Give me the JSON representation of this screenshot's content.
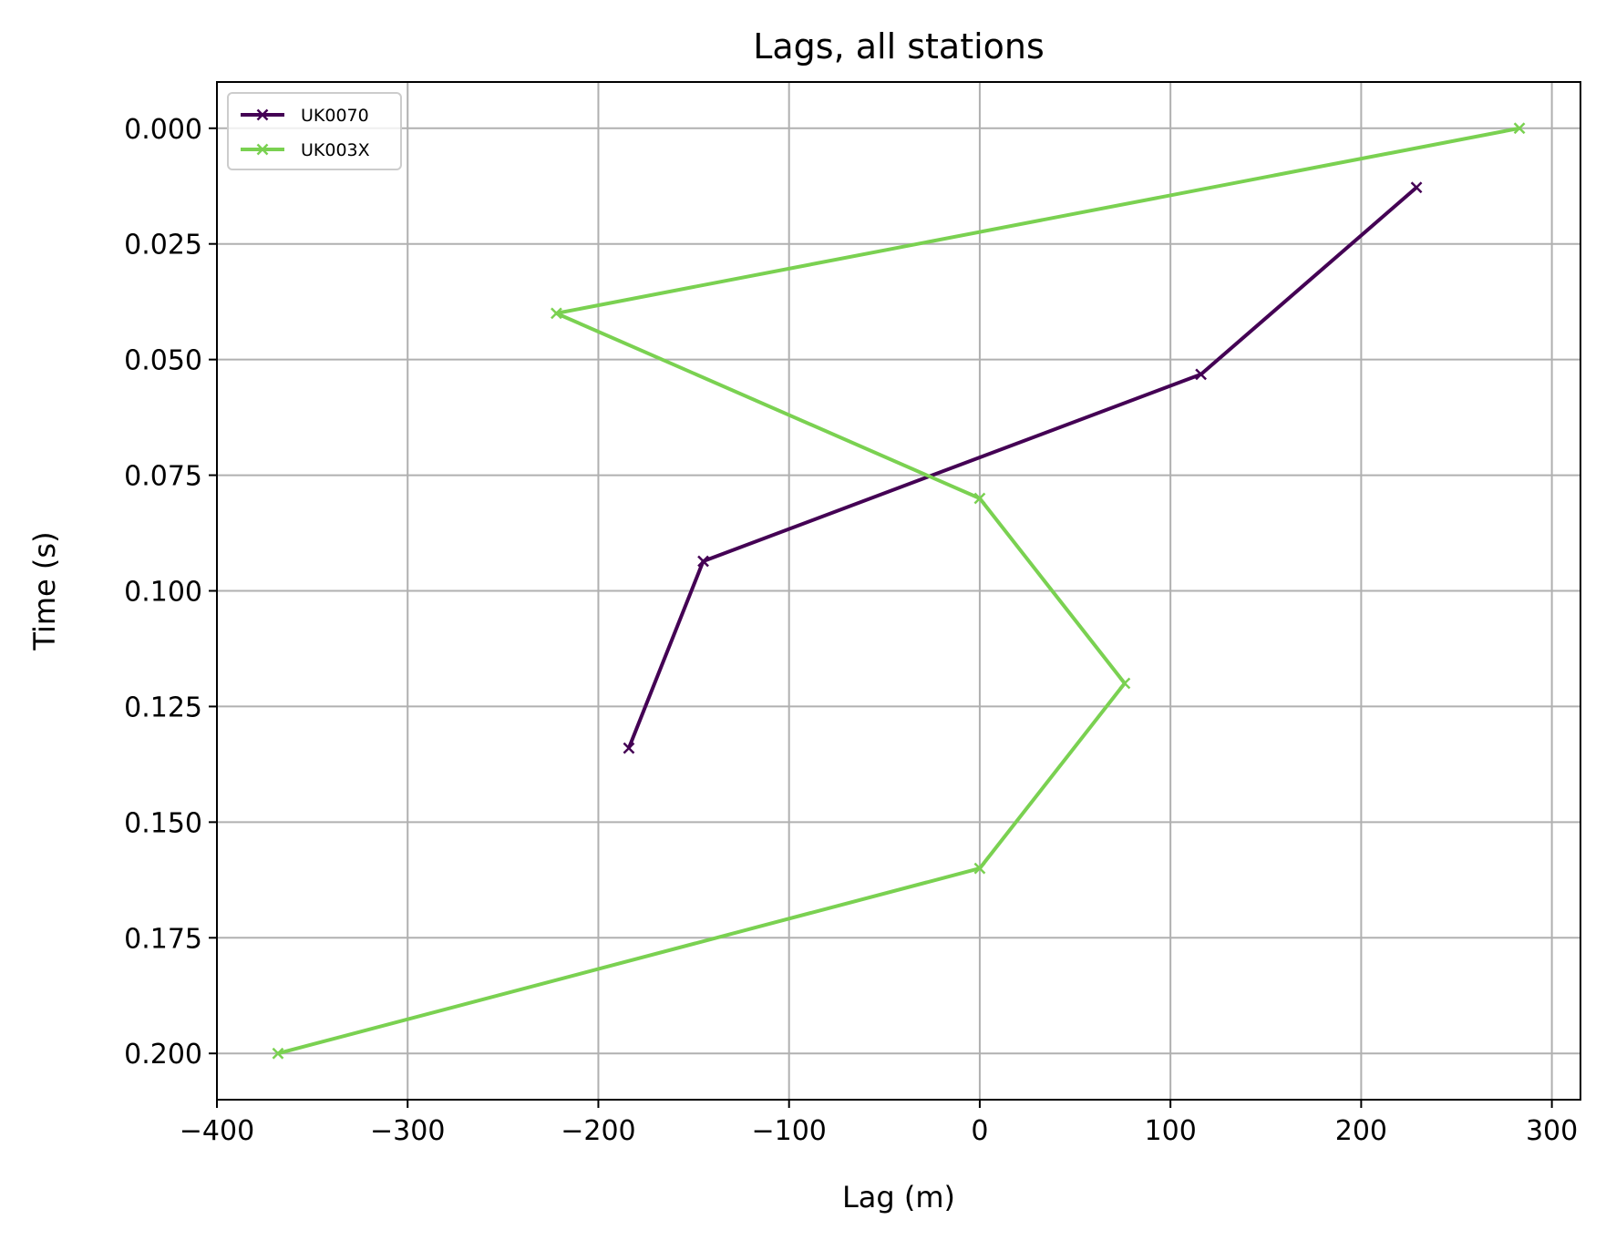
{
  "chart_data": {
    "type": "line",
    "title": "Lags, all stations",
    "xlabel": "Lag (m)",
    "ylabel": "Time (s)",
    "xlim": [
      -400,
      315
    ],
    "ylim": [
      0.21,
      -0.01
    ],
    "y_inverted": true,
    "grid": true,
    "legend_position": "top-left",
    "xticks": [
      -400,
      -300,
      -200,
      -100,
      0,
      100,
      200,
      300
    ],
    "xtick_labels": [
      "−400",
      "−300",
      "−200",
      "−100",
      "0",
      "100",
      "200",
      "300"
    ],
    "yticks": [
      0.0,
      0.025,
      0.05,
      0.075,
      0.1,
      0.125,
      0.15,
      0.175,
      0.2
    ],
    "ytick_labels": [
      "0.000",
      "0.025",
      "0.050",
      "0.075",
      "0.100",
      "0.125",
      "0.150",
      "0.175",
      "0.200"
    ],
    "marker": "x",
    "series": [
      {
        "name": "UK0070",
        "color": "#440154",
        "x": [
          229,
          116,
          -145,
          -184
        ],
        "y": [
          0.0128,
          0.0532,
          0.0936,
          0.134
        ]
      },
      {
        "name": "UK003X",
        "color": "#7ad151",
        "x": [
          283,
          -222,
          0,
          76,
          0,
          -368
        ],
        "y": [
          0.0,
          0.04,
          0.08,
          0.12,
          0.16,
          0.2
        ]
      }
    ]
  }
}
